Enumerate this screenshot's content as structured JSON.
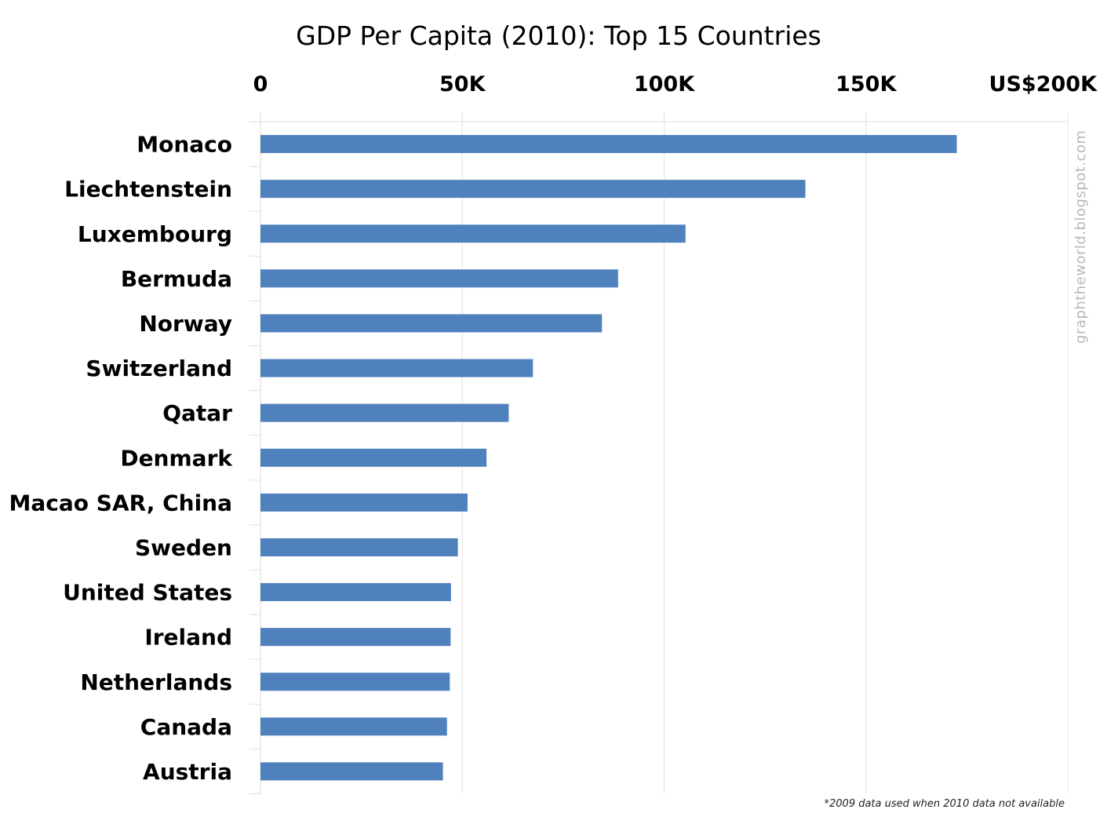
{
  "chart_data": {
    "type": "bar",
    "orientation": "horizontal",
    "title": "GDP Per Capita (2010): Top 15 Countries",
    "categories": [
      "Monaco",
      "Liechtenstein",
      "Luxembourg",
      "Bermuda",
      "Norway",
      "Switzerland",
      "Qatar",
      "Denmark",
      "Macao SAR, China",
      "Sweden",
      "United States",
      "Ireland",
      "Netherlands",
      "Canada",
      "Austria"
    ],
    "values": [
      172500,
      135000,
      105300,
      88600,
      84600,
      67500,
      61500,
      56000,
      51300,
      48900,
      47200,
      47100,
      46900,
      46200,
      45200
    ],
    "xlim": [
      0,
      200000
    ],
    "xticks": [
      0,
      50000,
      100000,
      150000,
      200000
    ],
    "xtick_labels": [
      "0",
      "50K",
      "100K",
      "150K",
      "US$200K"
    ],
    "x_axis_position": "top",
    "grid": true,
    "bar_color": "#4f81bd",
    "watermark": "graphtheworld.blogspot.com",
    "footnote": "*2009 data used when 2010 data not available"
  }
}
